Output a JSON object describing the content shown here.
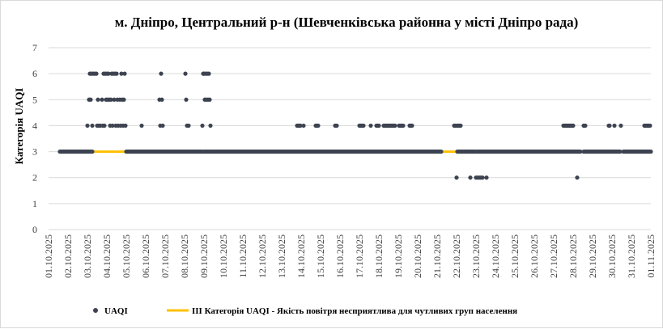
{
  "chart_data": {
    "type": "scatter",
    "title": "м. Дніпро, Центральний р-н (Шевченківська районна у місті Дніпро рада)",
    "ylabel": "Категорія UAQI",
    "xlabel": "",
    "ylim": [
      0,
      7
    ],
    "yticks": [
      "0",
      "1",
      "2",
      "3",
      "4",
      "5",
      "6",
      "7"
    ],
    "grid": "horizontal",
    "legend_position": "bottom",
    "x_ticks": [
      "01.10.2025",
      "02.10.2025",
      "03.10.2025",
      "04.10.2025",
      "05.10.2025",
      "06.10.2025",
      "07.10.2025",
      "08.10.2025",
      "09.10.2025",
      "10.10.2025",
      "11.10.2025",
      "12.10.2025",
      "13.10.2025",
      "14.10.2025",
      "15.10.2025",
      "16.10.2025",
      "17.10.2025",
      "18.10.2025",
      "19.10.2025",
      "20.10.2025",
      "21.10.2025",
      "22.10.2025",
      "23.10.2025",
      "24.10.2025",
      "25.10.2025",
      "26.10.2025",
      "27.10.2025",
      "28.10.2025",
      "29.10.2025",
      "30.10.2025",
      "31.10.2025",
      "01.11.2025"
    ],
    "series": [
      {
        "name": "UAQI",
        "kind": "points",
        "color": "#3d4350",
        "baseline": {
          "value": 3,
          "ranges": [
            [
              "01.10.2025 14:00",
              "03.10.2025 06:00"
            ],
            [
              "05.10.2025 00:00",
              "08.10.2025 22:00"
            ],
            [
              "09.10.2025 00:00",
              "21.10.2025 05:00"
            ],
            [
              "22.10.2025 01:00",
              "22.10.2025 23:00"
            ],
            [
              "23.10.2025 01:00",
              "28.10.2025 09:00"
            ],
            [
              "28.10.2025 13:00",
              "30.10.2025 10:00"
            ],
            [
              "30.10.2025 14:00",
              "01.11.2025 00:00"
            ]
          ]
        },
        "points": [
          [
            "03.10.2025 00:00",
            4
          ],
          [
            "03.10.2025 02:00",
            5
          ],
          [
            "03.10.2025 03:00",
            6
          ],
          [
            "03.10.2025 04:00",
            5
          ],
          [
            "03.10.2025 05:00",
            6
          ],
          [
            "03.10.2025 06:00",
            4
          ],
          [
            "03.10.2025 07:00",
            6
          ],
          [
            "03.10.2025 09:00",
            6
          ],
          [
            "03.10.2025 11:00",
            6
          ],
          [
            "03.10.2025 12:00",
            4
          ],
          [
            "03.10.2025 13:00",
            5
          ],
          [
            "03.10.2025 14:00",
            4
          ],
          [
            "03.10.2025 16:00",
            4
          ],
          [
            "03.10.2025 18:00",
            5
          ],
          [
            "03.10.2025 19:00",
            4
          ],
          [
            "03.10.2025 20:00",
            6
          ],
          [
            "03.10.2025 21:00",
            4
          ],
          [
            "03.10.2025 22:00",
            6
          ],
          [
            "03.10.2025 23:00",
            5
          ],
          [
            "04.10.2025 00:00",
            6
          ],
          [
            "04.10.2025 01:00",
            5
          ],
          [
            "04.10.2025 02:00",
            6
          ],
          [
            "04.10.2025 03:00",
            5
          ],
          [
            "04.10.2025 04:00",
            4
          ],
          [
            "04.10.2025 05:00",
            5
          ],
          [
            "04.10.2025 06:00",
            6
          ],
          [
            "04.10.2025 07:00",
            4
          ],
          [
            "04.10.2025 08:00",
            6
          ],
          [
            "04.10.2025 09:00",
            5
          ],
          [
            "04.10.2025 10:00",
            6
          ],
          [
            "04.10.2025 11:00",
            4
          ],
          [
            "04.10.2025 12:00",
            6
          ],
          [
            "04.10.2025 13:00",
            5
          ],
          [
            "04.10.2025 14:00",
            4
          ],
          [
            "04.10.2025 16:00",
            5
          ],
          [
            "04.10.2025 17:00",
            4
          ],
          [
            "04.10.2025 18:00",
            6
          ],
          [
            "04.10.2025 19:00",
            5
          ],
          [
            "04.10.2025 20:00",
            4
          ],
          [
            "04.10.2025 21:00",
            5
          ],
          [
            "04.10.2025 22:00",
            6
          ],
          [
            "04.10.2025 23:00",
            4
          ],
          [
            "05.10.2025 19:00",
            4
          ],
          [
            "06.10.2025 17:00",
            5
          ],
          [
            "06.10.2025 18:00",
            4
          ],
          [
            "06.10.2025 19:00",
            6
          ],
          [
            "06.10.2025 20:00",
            5
          ],
          [
            "06.10.2025 21:00",
            4
          ],
          [
            "08.10.2025 01:00",
            6
          ],
          [
            "08.10.2025 02:00",
            5
          ],
          [
            "08.10.2025 03:00",
            4
          ],
          [
            "08.10.2025 05:00",
            4
          ],
          [
            "08.10.2025 22:00",
            4
          ],
          [
            "08.10.2025 23:00",
            6
          ],
          [
            "09.10.2025 00:00",
            6
          ],
          [
            "09.10.2025 01:00",
            5
          ],
          [
            "09.10.2025 02:00",
            6
          ],
          [
            "09.10.2025 03:00",
            5
          ],
          [
            "09.10.2025 04:00",
            6
          ],
          [
            "09.10.2025 05:00",
            5
          ],
          [
            "09.10.2025 06:00",
            6
          ],
          [
            "09.10.2025 07:00",
            5
          ],
          [
            "09.10.2025 08:00",
            4
          ],
          [
            "09.10.2025 09:00",
            3
          ],
          [
            "13.10.2025 19:00",
            4
          ],
          [
            "13.10.2025 20:00",
            4
          ],
          [
            "13.10.2025 21:00",
            4
          ],
          [
            "13.10.2025 22:00",
            4
          ],
          [
            "13.10.2025 23:00",
            4
          ],
          [
            "14.10.2025 03:00",
            4
          ],
          [
            "14.10.2025 18:00",
            4
          ],
          [
            "14.10.2025 19:00",
            4
          ],
          [
            "14.10.2025 20:00",
            4
          ],
          [
            "14.10.2025 21:00",
            4
          ],
          [
            "15.10.2025 18:00",
            4
          ],
          [
            "15.10.2025 19:00",
            4
          ],
          [
            "15.10.2025 20:00",
            4
          ],
          [
            "17.10.2025 00:00",
            4
          ],
          [
            "17.10.2025 01:00",
            4
          ],
          [
            "17.10.2025 02:00",
            4
          ],
          [
            "17.10.2025 03:00",
            4
          ],
          [
            "17.10.2025 04:00",
            4
          ],
          [
            "17.10.2025 05:00",
            4
          ],
          [
            "17.10.2025 14:00",
            4
          ],
          [
            "17.10.2025 21:00",
            4
          ],
          [
            "17.10.2025 22:00",
            4
          ],
          [
            "17.10.2025 23:00",
            4
          ],
          [
            "18.10.2025 00:00",
            4
          ],
          [
            "18.10.2025 06:00",
            4
          ],
          [
            "18.10.2025 07:00",
            4
          ],
          [
            "18.10.2025 08:00",
            4
          ],
          [
            "18.10.2025 09:00",
            4
          ],
          [
            "18.10.2025 10:00",
            4
          ],
          [
            "18.10.2025 11:00",
            4
          ],
          [
            "18.10.2025 12:00",
            4
          ],
          [
            "18.10.2025 13:00",
            4
          ],
          [
            "18.10.2025 14:00",
            4
          ],
          [
            "18.10.2025 15:00",
            4
          ],
          [
            "18.10.2025 16:00",
            4
          ],
          [
            "18.10.2025 17:00",
            4
          ],
          [
            "18.10.2025 18:00",
            4
          ],
          [
            "18.10.2025 19:00",
            4
          ],
          [
            "18.10.2025 20:00",
            4
          ],
          [
            "19.10.2025 01:00",
            4
          ],
          [
            "19.10.2025 02:00",
            4
          ],
          [
            "19.10.2025 03:00",
            4
          ],
          [
            "19.10.2025 04:00",
            4
          ],
          [
            "19.10.2025 05:00",
            4
          ],
          [
            "19.10.2025 06:00",
            4
          ],
          [
            "19.10.2025 14:00",
            4
          ],
          [
            "19.10.2025 15:00",
            4
          ],
          [
            "19.10.2025 16:00",
            4
          ],
          [
            "19.10.2025 17:00",
            4
          ],
          [
            "21.10.2025 21:00",
            4
          ],
          [
            "21.10.2025 22:00",
            4
          ],
          [
            "21.10.2025 23:00",
            4
          ],
          [
            "22.10.2025 00:00",
            2
          ],
          [
            "22.10.2025 01:00",
            4
          ],
          [
            "22.10.2025 02:00",
            4
          ],
          [
            "22.10.2025 03:00",
            4
          ],
          [
            "22.10.2025 04:00",
            4
          ],
          [
            "22.10.2025 05:00",
            4
          ],
          [
            "22.10.2025 17:00",
            2
          ],
          [
            "23.10.2025 00:00",
            2
          ],
          [
            "23.10.2025 02:00",
            2
          ],
          [
            "23.10.2025 04:00",
            2
          ],
          [
            "23.10.2025 06:00",
            2
          ],
          [
            "23.10.2025 08:00",
            2
          ],
          [
            "23.10.2025 13:00",
            2
          ],
          [
            "27.10.2025 12:00",
            4
          ],
          [
            "27.10.2025 13:00",
            4
          ],
          [
            "27.10.2025 14:00",
            4
          ],
          [
            "27.10.2025 15:00",
            4
          ],
          [
            "27.10.2025 16:00",
            4
          ],
          [
            "27.10.2025 17:00",
            4
          ],
          [
            "27.10.2025 18:00",
            4
          ],
          [
            "27.10.2025 19:00",
            4
          ],
          [
            "27.10.2025 20:00",
            4
          ],
          [
            "27.10.2025 21:00",
            4
          ],
          [
            "27.10.2025 22:00",
            4
          ],
          [
            "27.10.2025 23:00",
            4
          ],
          [
            "28.10.2025 00:00",
            4
          ],
          [
            "28.10.2025 05:00",
            2
          ],
          [
            "28.10.2025 13:00",
            4
          ],
          [
            "28.10.2025 14:00",
            4
          ],
          [
            "28.10.2025 15:00",
            4
          ],
          [
            "29.10.2025 20:00",
            4
          ],
          [
            "29.10.2025 21:00",
            4
          ],
          [
            "30.10.2025 03:00",
            4
          ],
          [
            "30.10.2025 11:00",
            4
          ],
          [
            "31.10.2025 16:00",
            4
          ],
          [
            "31.10.2025 17:00",
            4
          ],
          [
            "31.10.2025 18:00",
            4
          ],
          [
            "31.10.2025 19:00",
            4
          ],
          [
            "31.10.2025 20:00",
            4
          ],
          [
            "31.10.2025 21:00",
            4
          ],
          [
            "31.10.2025 22:00",
            4
          ],
          [
            "31.10.2025 23:00",
            4
          ]
        ]
      },
      {
        "name": "ІІІ Категорія  UAQI  - Якість  повітря  несприятлива   для чутливих   груп  населення",
        "kind": "line",
        "color": "#ffc000",
        "value": 3,
        "x_range": [
          "01.10.2025 14:00",
          "01.11.2025 00:00"
        ]
      }
    ]
  }
}
